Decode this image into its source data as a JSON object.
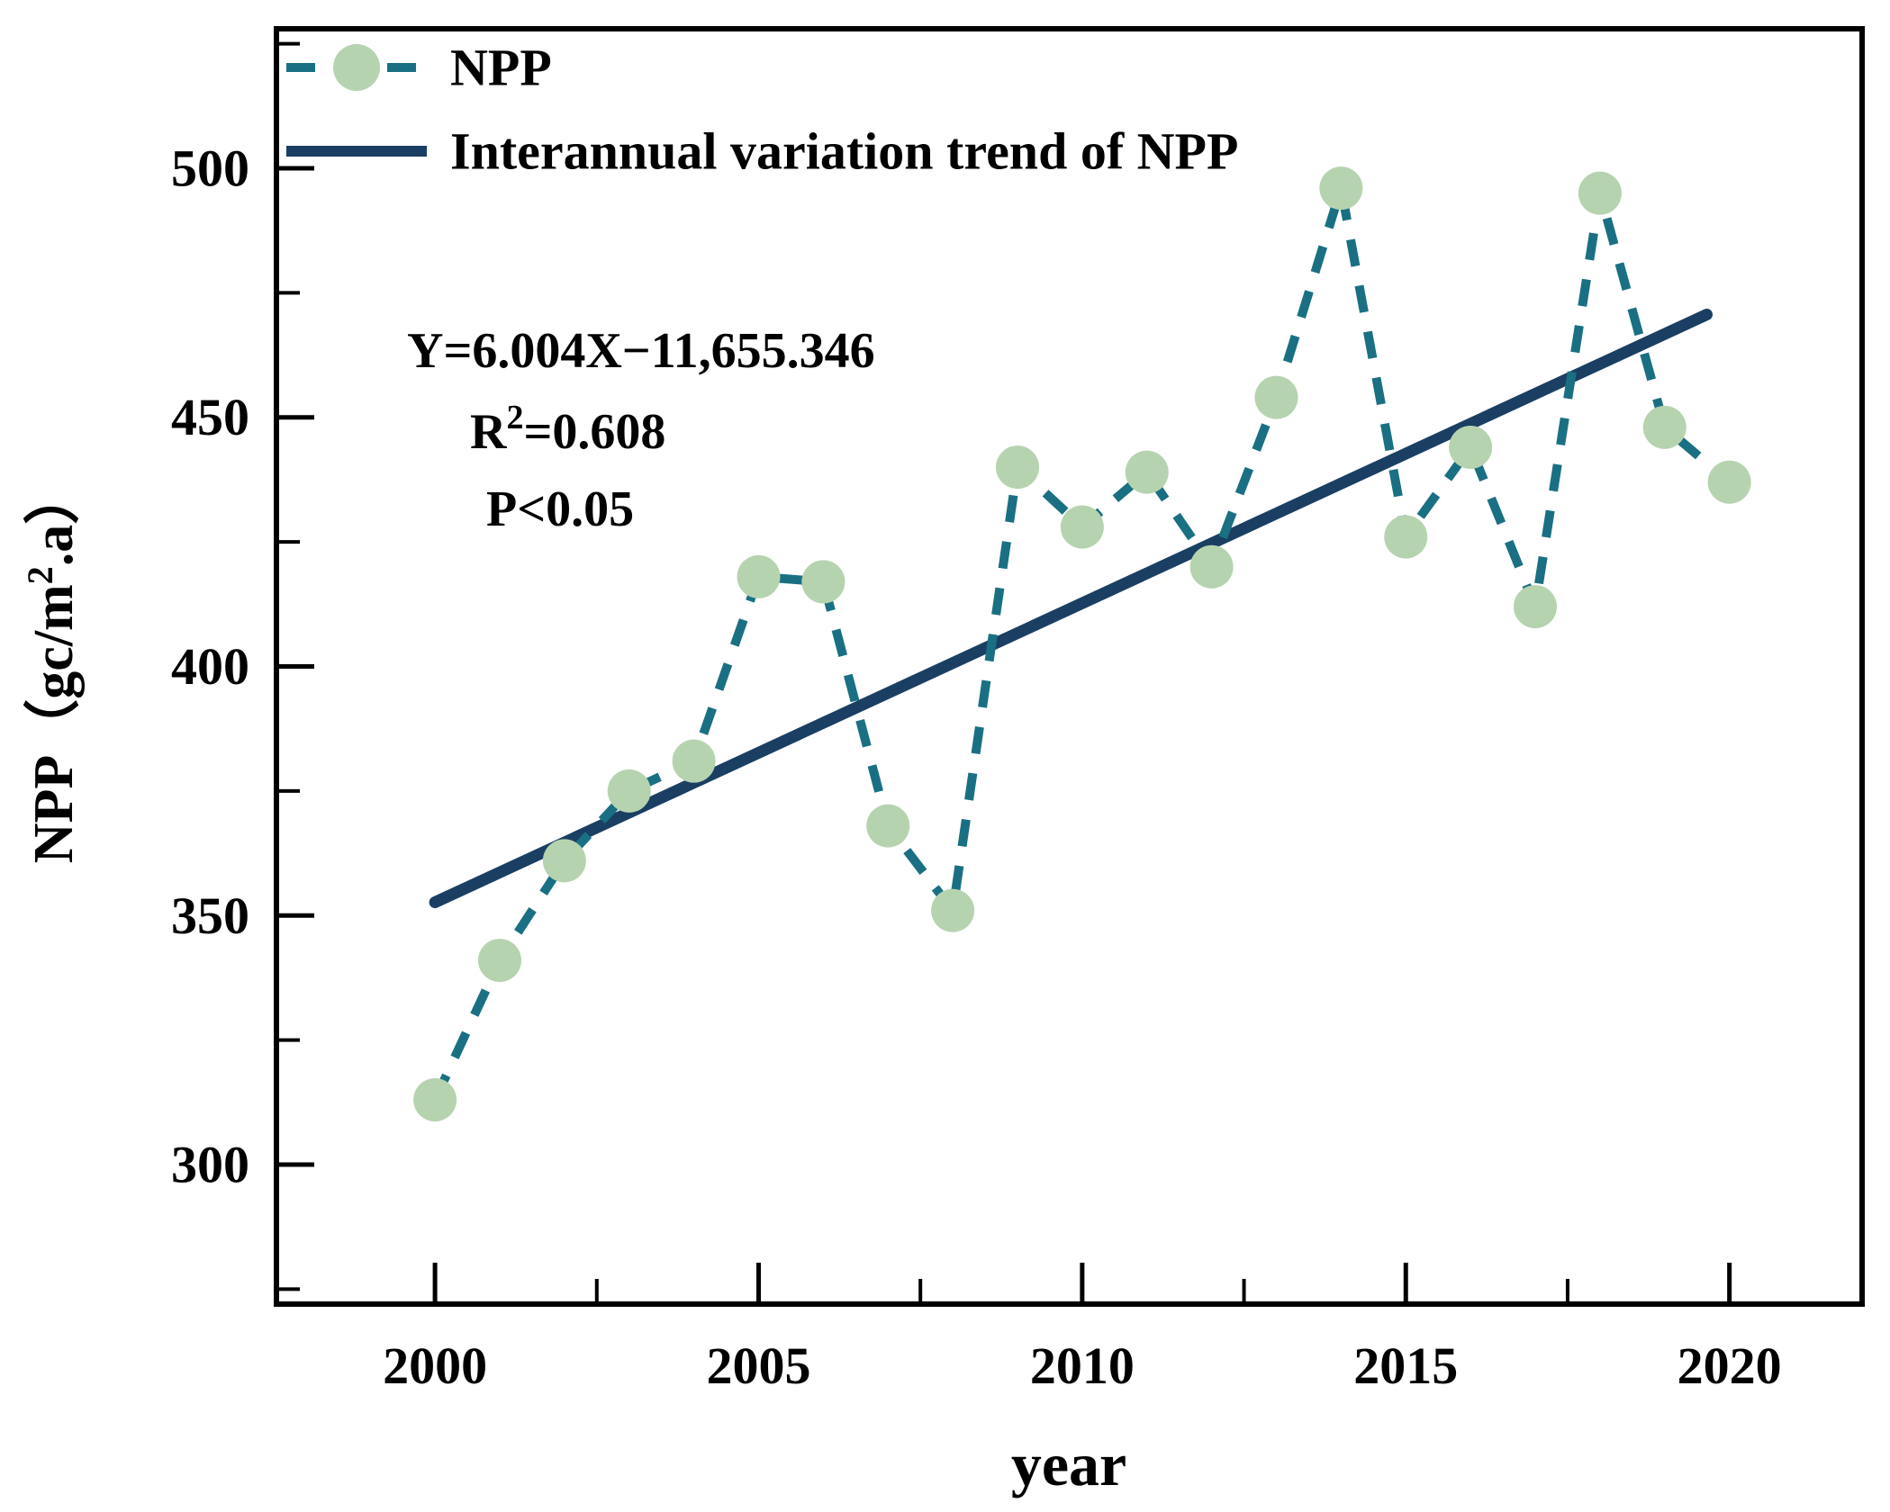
{
  "colors": {
    "npp_line": "#1a7082",
    "npp_marker": "#b6d3b0",
    "trend_line": "#1a3f62",
    "axis": "#000000",
    "background": "#ffffff"
  },
  "legend": {
    "items": [
      {
        "label": "NPP",
        "type": "dashed-line-with-marker"
      },
      {
        "label": "Interannual variation trend of NPP",
        "type": "solid-line"
      }
    ]
  },
  "annotation": {
    "equation": "Y=6.004X−11,655.346",
    "r2_base": "R",
    "r2_sup": "2",
    "r2_rest": "=0.608",
    "p_value": "P<0.05"
  },
  "axes": {
    "x_title": "year",
    "y_title_pre": "NPP（gc/m",
    "y_title_sup": "2",
    "y_title_post": ".a）"
  },
  "chart_data": {
    "type": "line",
    "title": "",
    "xlabel": "year",
    "ylabel": "NPP（gc/m2.a）",
    "x": [
      2000,
      2001,
      2002,
      2003,
      2004,
      2005,
      2006,
      2007,
      2008,
      2009,
      2010,
      2011,
      2012,
      2013,
      2014,
      2015,
      2016,
      2017,
      2018,
      2019,
      2020
    ],
    "series": [
      {
        "name": "NPP",
        "style": "dashed",
        "marker": "circle",
        "values": [
          313,
          341,
          361,
          375,
          381,
          418,
          417,
          368,
          351,
          440,
          428,
          439,
          420,
          454,
          496,
          426,
          444,
          412,
          495,
          448,
          437
        ]
      },
      {
        "name": "Interannual variation trend of NPP",
        "style": "solid",
        "trend": {
          "slope": 6.004,
          "intercept": -11655.346,
          "x_start": 2000,
          "x_end": 2019.65
        }
      }
    ],
    "xlim": [
      1997.55,
      2022.05
    ],
    "ylim": [
      272,
      528
    ],
    "x_major_ticks": [
      2000,
      2005,
      2010,
      2015,
      2020
    ],
    "x_minor_ticks": [
      2002.5,
      2007.5,
      2012.5,
      2017.5
    ],
    "y_major_ticks": [
      300,
      350,
      400,
      450,
      500
    ],
    "y_minor_ticks": [
      275,
      325,
      375,
      425,
      475,
      525
    ],
    "grid": false,
    "legend_position": "top-left"
  }
}
